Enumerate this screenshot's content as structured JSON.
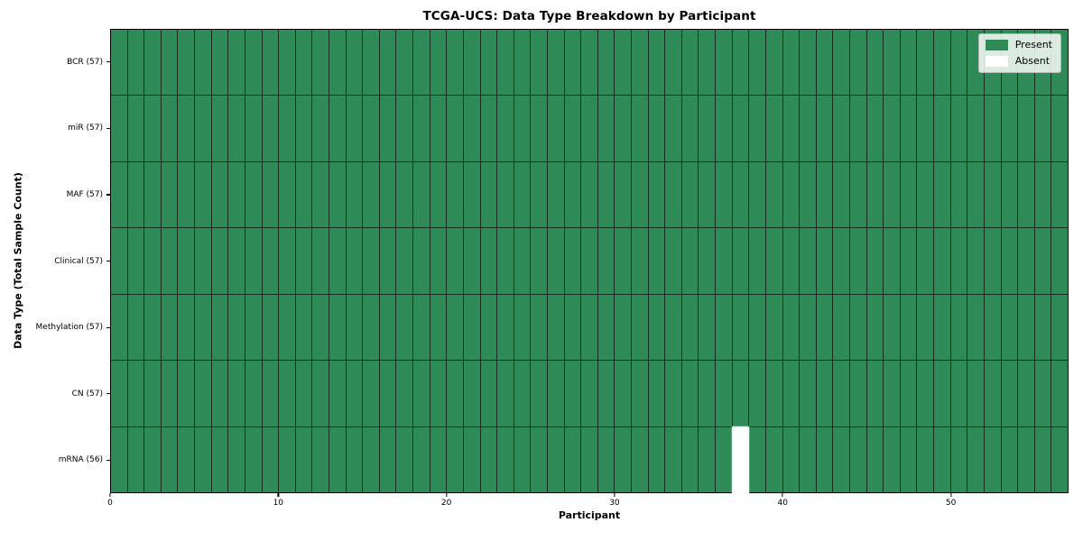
{
  "figure": {
    "title": "TCGA-UCS: Data Type Breakdown by Participant",
    "xlabel": "Participant",
    "ylabel": "Data Type (Total Sample Count)"
  },
  "legend": {
    "items": [
      {
        "label": "Present",
        "color": "#2E8B57"
      },
      {
        "label": "Absent",
        "color": "#FFFFFF"
      }
    ]
  },
  "chart_data": {
    "type": "heatmap",
    "title": "TCGA-UCS: Data Type Breakdown by Participant",
    "xlabel": "Participant",
    "ylabel": "Data Type (Total Sample Count)",
    "n_participants": 57,
    "x_range": [
      0,
      57
    ],
    "x_ticks": [
      0,
      10,
      20,
      30,
      40,
      50
    ],
    "grid": true,
    "legend_position": "upper right",
    "legend_entries": [
      "Present",
      "Absent"
    ],
    "rows": [
      {
        "label": "BCR (57)",
        "data_type": "BCR",
        "total_samples": 57,
        "present_count": 57,
        "absent_participant_indices": []
      },
      {
        "label": "miR (57)",
        "data_type": "miR",
        "total_samples": 57,
        "present_count": 57,
        "absent_participant_indices": []
      },
      {
        "label": "MAF (57)",
        "data_type": "MAF",
        "total_samples": 57,
        "present_count": 57,
        "absent_participant_indices": []
      },
      {
        "label": "Clinical (57)",
        "data_type": "Clinical",
        "total_samples": 57,
        "present_count": 57,
        "absent_participant_indices": []
      },
      {
        "label": "Methylation (57)",
        "data_type": "Methylation",
        "total_samples": 57,
        "present_count": 57,
        "absent_participant_indices": []
      },
      {
        "label": "CN (57)",
        "data_type": "CN",
        "total_samples": 57,
        "present_count": 57,
        "absent_participant_indices": []
      },
      {
        "label": "mRNA (56)",
        "data_type": "mRNA",
        "total_samples": 56,
        "present_count": 56,
        "absent_participant_indices": [
          37
        ]
      }
    ],
    "colors": {
      "present": "#2E8B57",
      "absent": "#FFFFFF",
      "grid_line": "#16301F",
      "spine": "#000000",
      "background": "#FFFFFF"
    }
  }
}
